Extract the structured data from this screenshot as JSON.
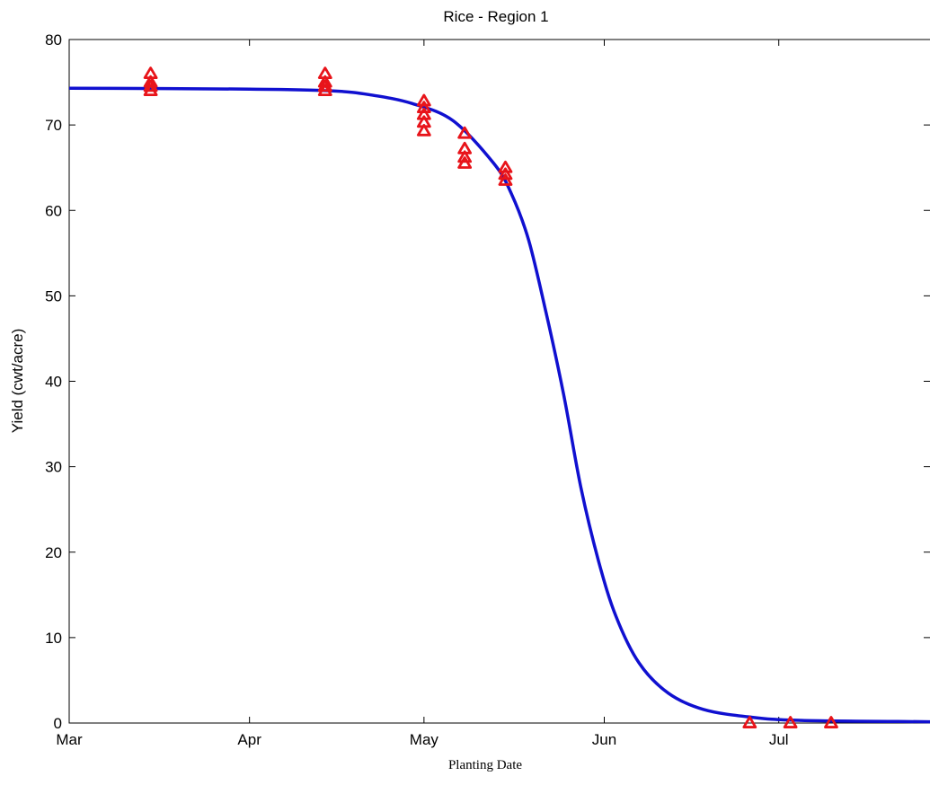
{
  "chart_data": {
    "type": "scatter",
    "title": "Rice - Region 1",
    "xlabel": "Planting Date",
    "ylabel": "Yield (cwt/acre)",
    "xlim": [
      "2024-03-01",
      "2024-07-27"
    ],
    "ylim": [
      0,
      80
    ],
    "x_ticks": [
      {
        "label": "Mar",
        "date": "2024-03-01"
      },
      {
        "label": "Apr",
        "date": "2024-04-01"
      },
      {
        "label": "May",
        "date": "2024-05-01"
      },
      {
        "label": "Jun",
        "date": "2024-06-01"
      },
      {
        "label": "Jul",
        "date": "2024-07-01"
      }
    ],
    "y_ticks": [
      0,
      10,
      20,
      30,
      40,
      50,
      60,
      70,
      80
    ],
    "grid": false,
    "series": [
      {
        "kind": "points",
        "marker": "triangle-open",
        "color": "#e8141a",
        "points": [
          {
            "x": "2024-03-15",
            "y": 76.0
          },
          {
            "x": "2024-03-15",
            "y": 75.0
          },
          {
            "x": "2024-03-15",
            "y": 74.5
          },
          {
            "x": "2024-03-15",
            "y": 74.0
          },
          {
            "x": "2024-04-14",
            "y": 76.0
          },
          {
            "x": "2024-04-14",
            "y": 75.0
          },
          {
            "x": "2024-04-14",
            "y": 74.5
          },
          {
            "x": "2024-04-14",
            "y": 74.0
          },
          {
            "x": "2024-05-01",
            "y": 72.8
          },
          {
            "x": "2024-05-01",
            "y": 72.0
          },
          {
            "x": "2024-05-01",
            "y": 71.2
          },
          {
            "x": "2024-05-01",
            "y": 70.3
          },
          {
            "x": "2024-05-01",
            "y": 69.3
          },
          {
            "x": "2024-05-08",
            "y": 69.0
          },
          {
            "x": "2024-05-08",
            "y": 67.2
          },
          {
            "x": "2024-05-08",
            "y": 66.2
          },
          {
            "x": "2024-05-08",
            "y": 65.5
          },
          {
            "x": "2024-05-15",
            "y": 65.0
          },
          {
            "x": "2024-05-15",
            "y": 64.2
          },
          {
            "x": "2024-05-15",
            "y": 63.5
          },
          {
            "x": "2024-06-26",
            "y": 0.0
          },
          {
            "x": "2024-07-03",
            "y": 0.0
          },
          {
            "x": "2024-07-10",
            "y": 0.0
          }
        ]
      },
      {
        "kind": "line",
        "color": "#1010d0",
        "points": [
          {
            "x": "2024-03-01",
            "y": 74.3
          },
          {
            "x": "2024-04-01",
            "y": 74.2
          },
          {
            "x": "2024-04-15",
            "y": 74.0
          },
          {
            "x": "2024-04-22",
            "y": 73.5
          },
          {
            "x": "2024-04-29",
            "y": 72.5
          },
          {
            "x": "2024-05-06",
            "y": 70.5
          },
          {
            "x": "2024-05-13",
            "y": 65.5
          },
          {
            "x": "2024-05-16",
            "y": 62.0
          },
          {
            "x": "2024-05-19",
            "y": 56.5
          },
          {
            "x": "2024-05-22",
            "y": 48.0
          },
          {
            "x": "2024-05-25",
            "y": 38.5
          },
          {
            "x": "2024-05-28",
            "y": 27.5
          },
          {
            "x": "2024-05-31",
            "y": 19.0
          },
          {
            "x": "2024-06-03",
            "y": 12.5
          },
          {
            "x": "2024-06-07",
            "y": 7.0
          },
          {
            "x": "2024-06-12",
            "y": 3.5
          },
          {
            "x": "2024-06-18",
            "y": 1.6
          },
          {
            "x": "2024-06-26",
            "y": 0.7
          },
          {
            "x": "2024-07-05",
            "y": 0.3
          },
          {
            "x": "2024-07-27",
            "y": 0.15
          }
        ]
      }
    ]
  }
}
